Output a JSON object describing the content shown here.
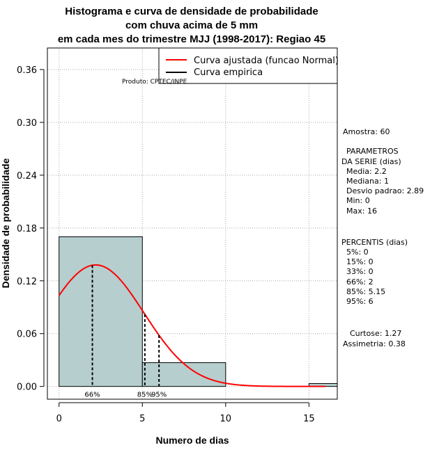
{
  "chart_data": {
    "type": "histogram",
    "title": [
      "Histograma e curva de densidade de probabilidade",
      "com chuva acima de 5 mm",
      "em cada mes do trimestre MJJ (1998-2017): Regiao 45"
    ],
    "xlabel": "Numero de dias",
    "ylabel": "Densidade de probabilidade",
    "xlim": [
      -0.7,
      16.7
    ],
    "ylim": [
      -0.0145,
      0.3845
    ],
    "xticks": [
      0,
      5,
      10,
      15
    ],
    "xtick_labels": [
      "0",
      "5",
      "10",
      "15"
    ],
    "yticks": [
      0.0,
      0.06,
      0.12,
      0.18,
      0.24,
      0.3,
      0.36
    ],
    "ytick_labels": [
      "0.00",
      "0.06",
      "0.12",
      "0.18",
      "0.24",
      "0.30",
      "0.36"
    ],
    "grid": true,
    "bins": [
      {
        "from": 0,
        "to": 5,
        "density": 0.17
      },
      {
        "from": 5,
        "to": 10,
        "density": 0.027
      },
      {
        "from": 10,
        "to": 15,
        "density": 0.0
      },
      {
        "from": 15,
        "to": 16.7,
        "density": 0.0033
      }
    ],
    "bar_color": "#b6cece",
    "normal_curve": {
      "mean": 2.2,
      "sd": 2.89,
      "color": "#ff0000",
      "x_range": [
        0,
        16
      ]
    },
    "percentile_lines": [
      {
        "label": "66%",
        "x": 2
      },
      {
        "label": "85%",
        "x": 5.15
      },
      {
        "label": "95%",
        "x": 6
      }
    ],
    "legend": {
      "position": "top-right",
      "entries": [
        {
          "label": "Curva ajustada (funcao Normal)",
          "color": "#ff0000"
        },
        {
          "label": "Curva empirica",
          "color": "#000000"
        }
      ]
    },
    "credit": "Produto: CPTEC/INPE"
  },
  "stats": {
    "sample": "Amostra: 60",
    "params_header_1": "PARAMETROS",
    "params_header_2": "DA SERIE (dias)",
    "mean": "Media: 2.2",
    "median": "Mediana: 1",
    "sd": "Desvio padrao: 2.89",
    "min": "Min: 0",
    "max": "Max: 16",
    "percentiles_header": "PERCENTIS (dias)",
    "p5": "5%: 0",
    "p15": "15%: 0",
    "p33": "33%: 0",
    "p66": "66%: 2",
    "p85": "85%: 5.15",
    "p95": "95%: 6",
    "kurtosis": "Curtose: 1.27",
    "skewness": "Assimetria: 0.38"
  }
}
